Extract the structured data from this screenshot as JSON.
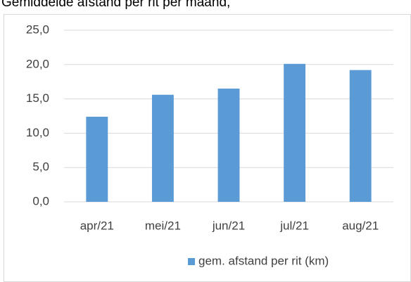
{
  "chart_data": {
    "type": "bar",
    "title": "Gemiddelde afstand per rit per maand,",
    "categories": [
      "apr/21",
      "mei/21",
      "jun/21",
      "jul/21",
      "aug/21"
    ],
    "series": [
      {
        "name": "gem. afstand per rit (km)",
        "color": "#5b9bd5",
        "values": [
          12.4,
          15.6,
          16.5,
          20.1,
          19.2
        ]
      }
    ],
    "ylim": [
      0,
      25
    ],
    "yticks": [
      {
        "value": 0,
        "label": "0,0"
      },
      {
        "value": 5,
        "label": "5,0"
      },
      {
        "value": 10,
        "label": "10,0"
      },
      {
        "value": 15,
        "label": "15,0"
      },
      {
        "value": 20,
        "label": "20,0"
      },
      {
        "value": 25,
        "label": "25,0"
      }
    ],
    "grid": true,
    "legend": "bottom"
  }
}
